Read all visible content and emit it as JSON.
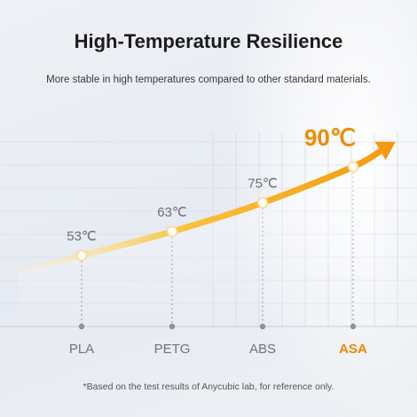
{
  "header": {
    "title": "High-Temperature Resilience",
    "subtitle": "More stable in high temperatures compared to other standard materials."
  },
  "footnote": "*Based on the test results of Anycubic lab, for reference only.",
  "chart_data": {
    "type": "line",
    "categories": [
      "PLA",
      "PETG",
      "ABS",
      "ASA"
    ],
    "series": [
      {
        "values": [
          53,
          63,
          75,
          90
        ]
      }
    ],
    "value_labels": [
      "53℃",
      "63℃",
      "75℃",
      "90℃"
    ],
    "highlight_index": 3,
    "grid": true,
    "colors": {
      "highlight": "#f08a00",
      "label": "#707070",
      "grid": "#d6dae3",
      "curve_start": "#fff1b8",
      "curve_mid": "#fbc23c",
      "curve_end": "#f59a10"
    }
  }
}
